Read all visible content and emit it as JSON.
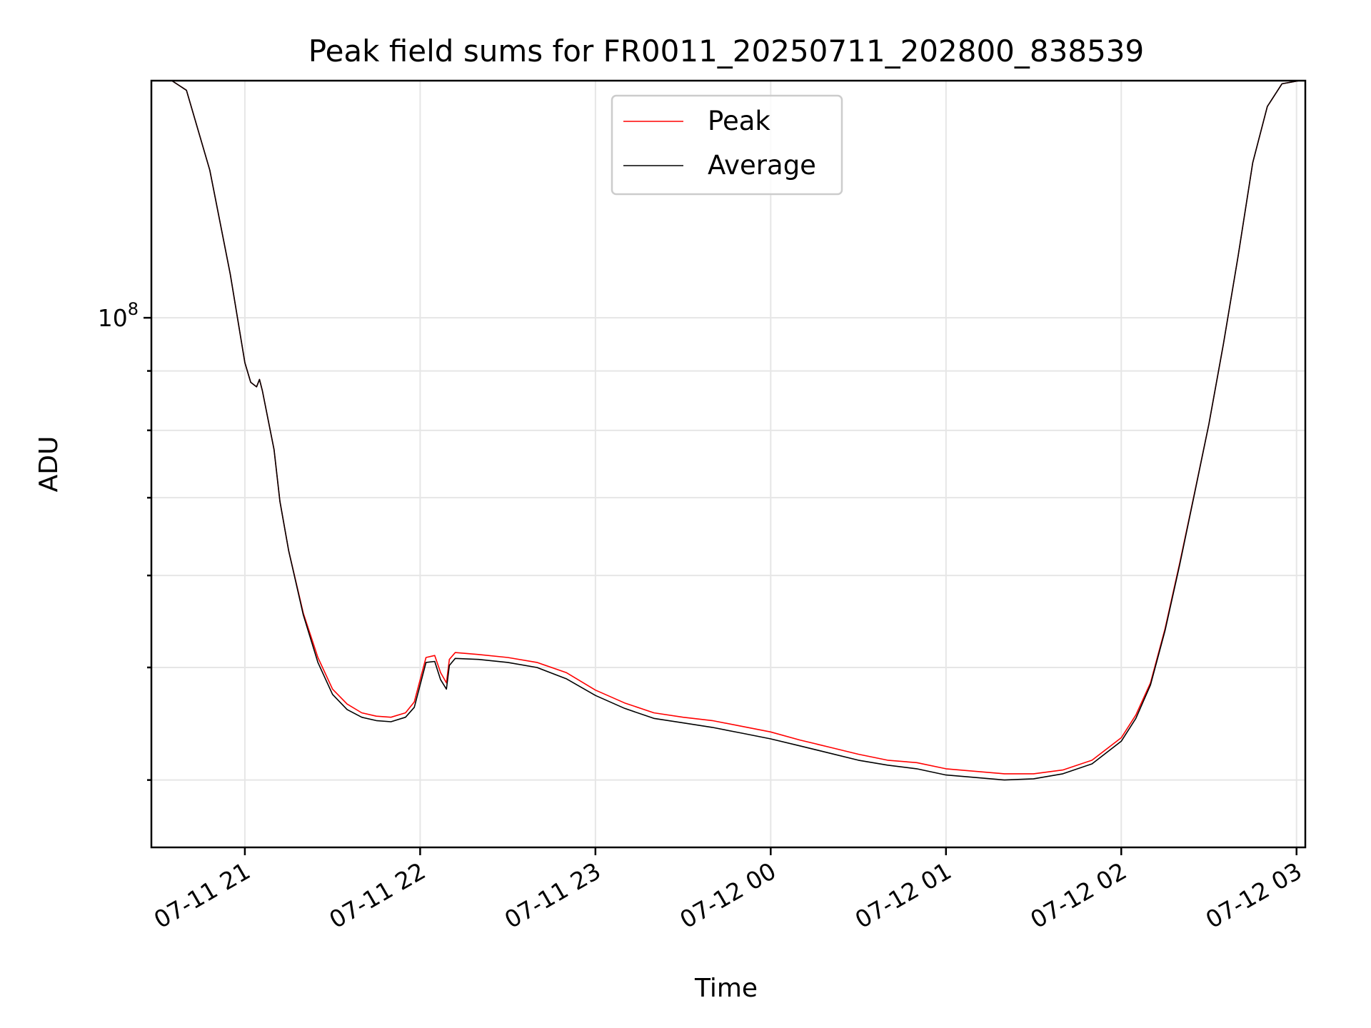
{
  "chart_data": {
    "type": "line",
    "title": "Peak field sums for FR0011_20250711_202800_838539",
    "xlabel": "Time",
    "ylabel": "ADU",
    "y_scale": "log",
    "grid": true,
    "legend_placement": "top-center",
    "xlim": [
      "2025-07-11 20:28",
      "2025-07-12 03:03"
    ],
    "ylim": [
      35000000,
      160000000
    ],
    "x_ticks": [
      "07-11 21",
      "07-11 22",
      "07-11 23",
      "07-12 00",
      "07-12 01",
      "07-12 02",
      "07-12 03"
    ],
    "x_tick_times": [
      "2025-07-11 21:00",
      "2025-07-11 22:00",
      "2025-07-11 23:00",
      "2025-07-12 00:00",
      "2025-07-12 01:00",
      "2025-07-12 02:00",
      "2025-07-12 03:00"
    ],
    "y_tick_label": {
      "base": "10",
      "exp": "8"
    },
    "y_tick_major": 100000000,
    "y_tick_minor": [
      40000000,
      50000000,
      60000000,
      70000000,
      80000000,
      90000000
    ],
    "x": [
      "2025-07-11 20:28",
      "2025-07-11 20:35",
      "2025-07-11 20:40",
      "2025-07-11 20:48",
      "2025-07-11 20:55",
      "2025-07-11 21:00",
      "2025-07-11 21:02",
      "2025-07-11 21:04",
      "2025-07-11 21:05",
      "2025-07-11 21:06",
      "2025-07-11 21:10",
      "2025-07-11 21:12",
      "2025-07-11 21:15",
      "2025-07-11 21:20",
      "2025-07-11 21:25",
      "2025-07-11 21:30",
      "2025-07-11 21:35",
      "2025-07-11 21:40",
      "2025-07-11 21:45",
      "2025-07-11 21:50",
      "2025-07-11 21:55",
      "2025-07-11 21:58",
      "2025-07-11 22:02",
      "2025-07-11 22:05",
      "2025-07-11 22:07",
      "2025-07-11 22:09",
      "2025-07-11 22:10",
      "2025-07-11 22:12",
      "2025-07-11 22:20",
      "2025-07-11 22:30",
      "2025-07-11 22:40",
      "2025-07-11 22:50",
      "2025-07-11 23:00",
      "2025-07-11 23:10",
      "2025-07-11 23:20",
      "2025-07-11 23:30",
      "2025-07-11 23:40",
      "2025-07-11 23:50",
      "2025-07-12 00:00",
      "2025-07-12 00:10",
      "2025-07-12 00:20",
      "2025-07-12 00:30",
      "2025-07-12 00:40",
      "2025-07-12 00:50",
      "2025-07-12 01:00",
      "2025-07-12 01:10",
      "2025-07-12 01:20",
      "2025-07-12 01:30",
      "2025-07-12 01:40",
      "2025-07-12 01:50",
      "2025-07-12 02:00",
      "2025-07-12 02:05",
      "2025-07-12 02:10",
      "2025-07-12 02:15",
      "2025-07-12 02:20",
      "2025-07-12 02:25",
      "2025-07-12 02:30",
      "2025-07-12 02:35",
      "2025-07-12 02:40",
      "2025-07-12 02:45",
      "2025-07-12 02:50",
      "2025-07-12 02:55",
      "2025-07-12 03:01"
    ],
    "series": [
      {
        "name": "Peak",
        "color": "#ff0000",
        "values": [
          160000000,
          160000000,
          157000000,
          134000000,
          109000000,
          91500000,
          88000000,
          87200000,
          88500000,
          86500000,
          77000000,
          69500000,
          63000000,
          55700000,
          51000000,
          47900000,
          46500000,
          45700000,
          45400000,
          45300000,
          45700000,
          46700000,
          51000000,
          51200000,
          49500000,
          48500000,
          50800000,
          51500000,
          51300000,
          51000000,
          50500000,
          49500000,
          47800000,
          46600000,
          45700000,
          45300000,
          45000000,
          44500000,
          44000000,
          43300000,
          42700000,
          42100000,
          41600000,
          41400000,
          40900000,
          40700000,
          40500000,
          40500000,
          40800000,
          41600000,
          43500000,
          45500000,
          48500000,
          54000000,
          61500000,
          70500000,
          81000000,
          95000000,
          113000000,
          136000000,
          152000000,
          159000000,
          160000000
        ]
      },
      {
        "name": "Average",
        "color": "#000000",
        "values": [
          160000000,
          160000000,
          157000000,
          134000000,
          109000000,
          91500000,
          88000000,
          87200000,
          88500000,
          86500000,
          77000000,
          69500000,
          63000000,
          55500000,
          50500000,
          47400000,
          46000000,
          45300000,
          45000000,
          44900000,
          45300000,
          46200000,
          50500000,
          50600000,
          48800000,
          47900000,
          50200000,
          50900000,
          50800000,
          50500000,
          50000000,
          48900000,
          47300000,
          46100000,
          45200000,
          44800000,
          44400000,
          43900000,
          43400000,
          42800000,
          42200000,
          41600000,
          41200000,
          40900000,
          40400000,
          40200000,
          40000000,
          40100000,
          40500000,
          41300000,
          43200000,
          45200000,
          48300000,
          53800000,
          61300000,
          70400000,
          81000000,
          95000000,
          113000000,
          136000000,
          152000000,
          159000000,
          160000000
        ]
      }
    ]
  }
}
